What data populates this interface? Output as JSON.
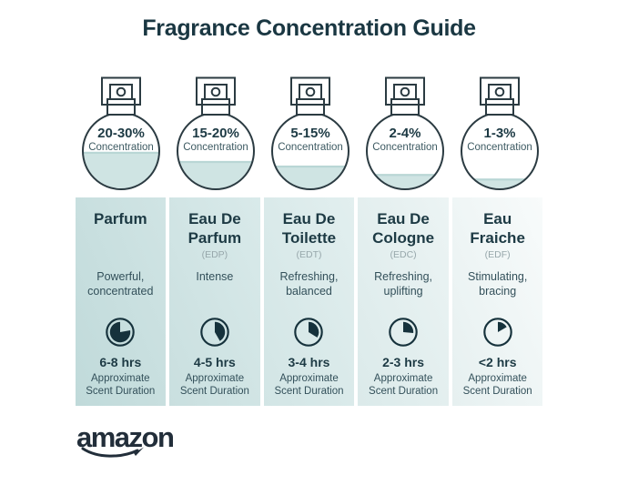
{
  "title": "Fragrance Concentration Guide",
  "labels": {
    "concentration": "Concentration",
    "duration_line1": "Approximate",
    "duration_line2": "Scent Duration"
  },
  "brand": {
    "logo_text": "amazon"
  },
  "columns": [
    {
      "name_lines": [
        "Parfum"
      ],
      "abbr": "",
      "concentration": "20-30%",
      "fill_percent": 49,
      "desc_lines": [
        "Powerful,",
        "concentrated"
      ],
      "duration": "6-8 hrs",
      "clock": {
        "start_deg": 80,
        "end_deg": 360
      }
    },
    {
      "name_lines": [
        "Eau De",
        "Parfum"
      ],
      "abbr": "(EDP)",
      "concentration": "15-20%",
      "fill_percent": 37,
      "desc_lines": [
        "Intense"
      ],
      "duration": "4-5 hrs",
      "clock": {
        "start_deg": 0,
        "end_deg": 150
      }
    },
    {
      "name_lines": [
        "Eau De",
        "Toilette"
      ],
      "abbr": "(EDT)",
      "concentration": "5-15%",
      "fill_percent": 31,
      "desc_lines": [
        "Refreshing,",
        "balanced"
      ],
      "duration": "3-4 hrs",
      "clock": {
        "start_deg": 0,
        "end_deg": 122
      }
    },
    {
      "name_lines": [
        "Eau De",
        "Cologne"
      ],
      "abbr": "(EDC)",
      "concentration": "2-4%",
      "fill_percent": 20,
      "desc_lines": [
        "Refreshing,",
        "uplifting"
      ],
      "duration": "2-3 hrs",
      "clock": {
        "start_deg": 0,
        "end_deg": 95
      }
    },
    {
      "name_lines": [
        "Eau",
        "Fraiche"
      ],
      "abbr": "(EDF)",
      "concentration": "1-3%",
      "fill_percent": 14,
      "desc_lines": [
        "Stimulating,",
        "bracing"
      ],
      "duration": "<2 hrs",
      "clock": {
        "start_deg": 0,
        "end_deg": 60
      }
    }
  ],
  "colors": {
    "title_ink": "#1a3742",
    "text_dark": "#1d3a44",
    "text_muted": "#33505a",
    "abbr_gray": "#97a7ab",
    "liquid": "#cfe4e3",
    "liquid_edge": "#b9d6d5",
    "outline_ink": "#2b3b42",
    "clock_ink": "#16323c",
    "logo_ink": "#222e3a",
    "column_bg_dark": "#c0dada",
    "column_bg_light": "#f8fbfb"
  }
}
